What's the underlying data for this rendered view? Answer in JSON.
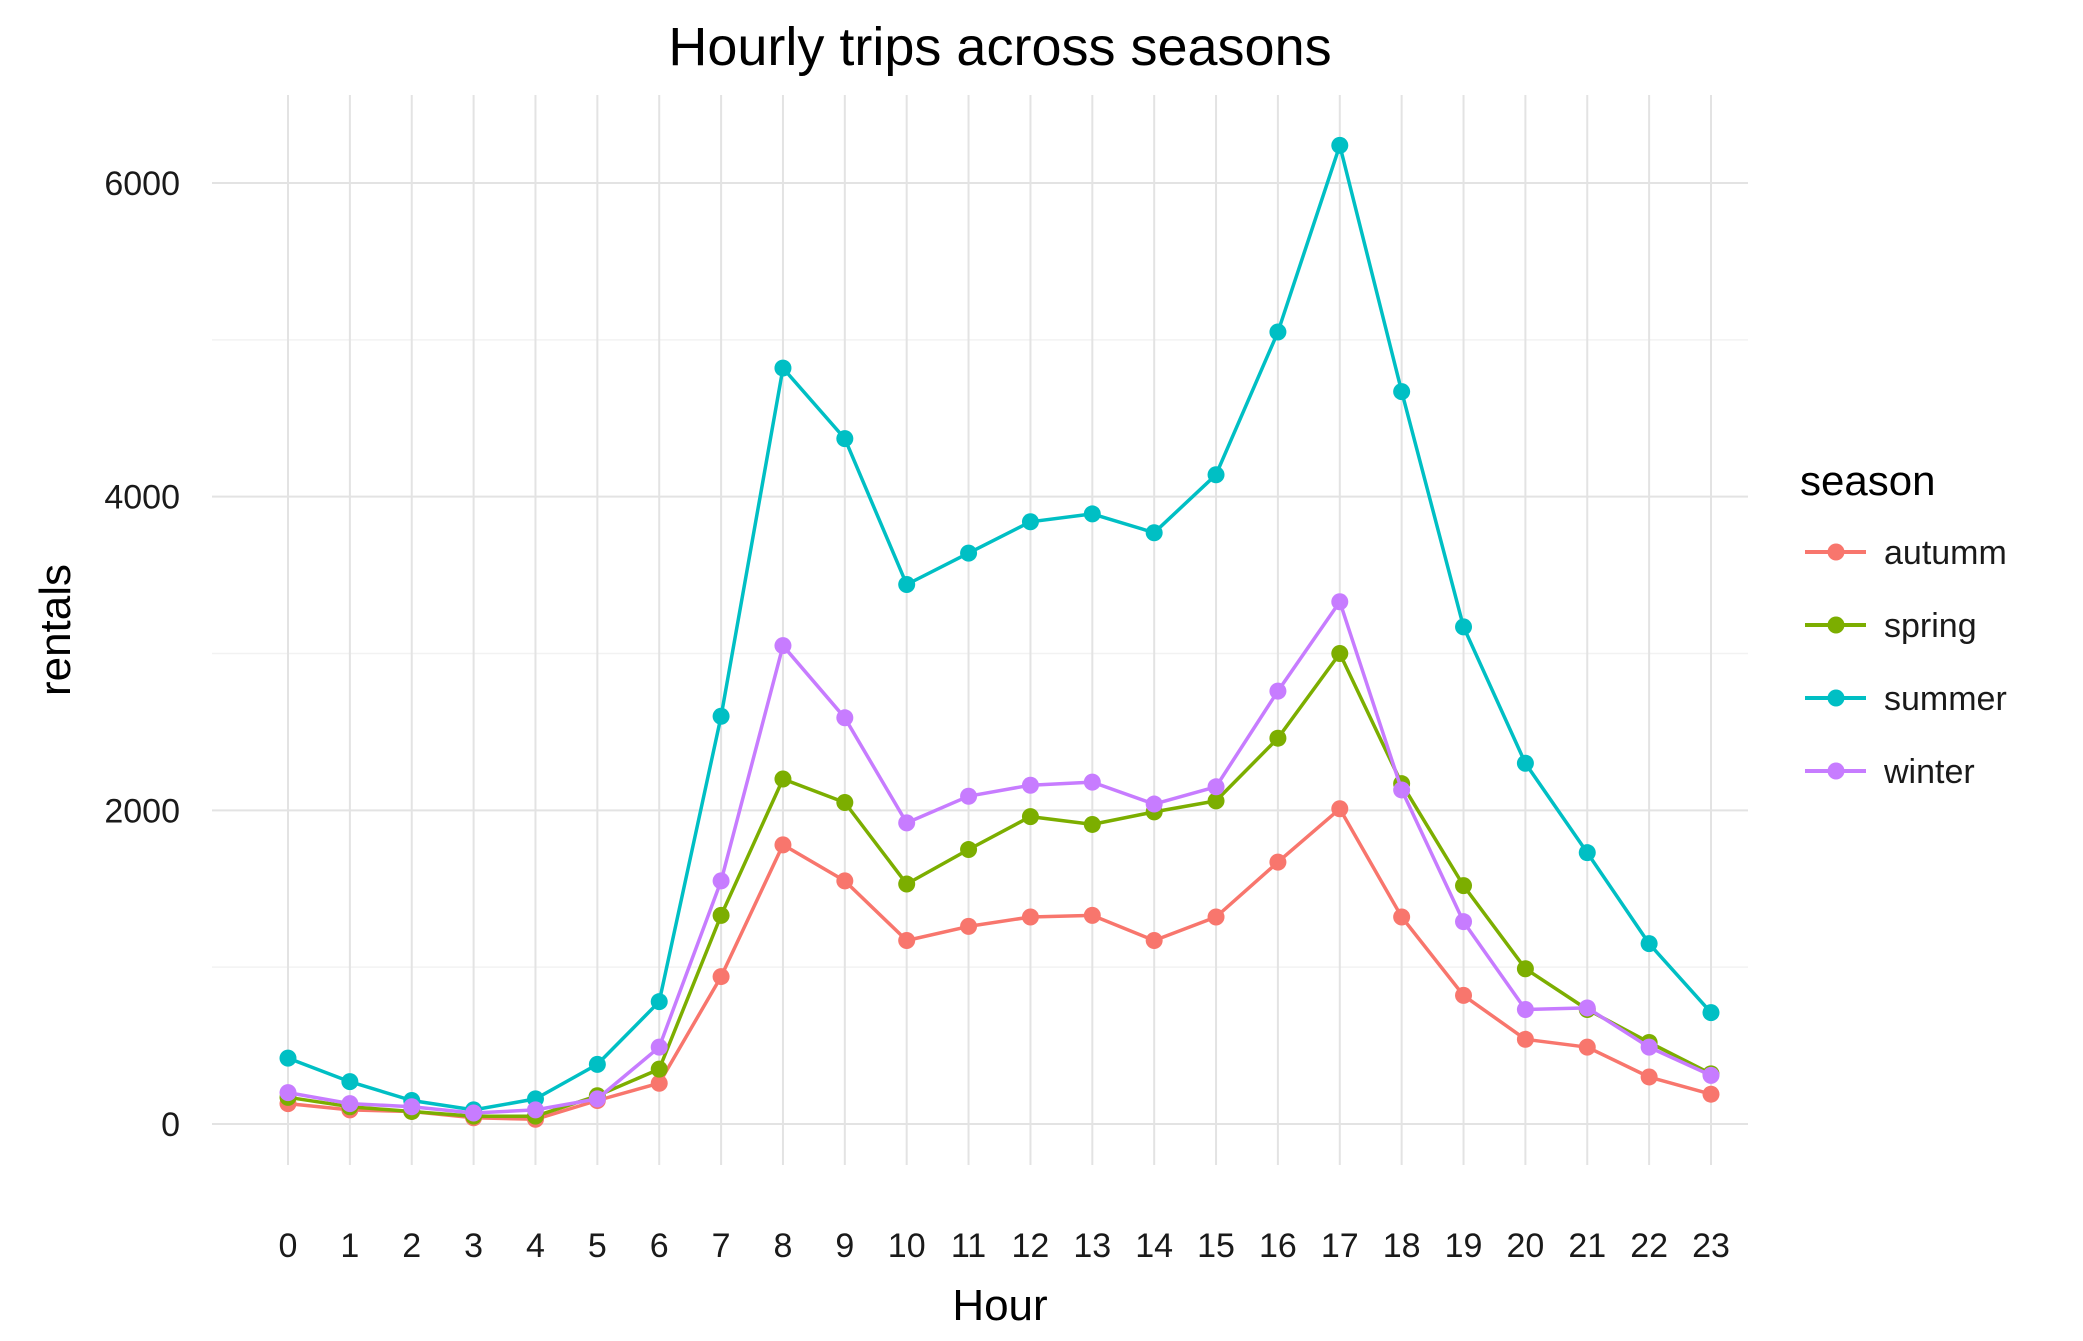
{
  "chart_data": {
    "type": "line",
    "title": "Hourly trips across seasons",
    "xlabel": "Hour",
    "ylabel": "rentals",
    "x": [
      0,
      1,
      2,
      3,
      4,
      5,
      6,
      7,
      8,
      9,
      10,
      11,
      12,
      13,
      14,
      15,
      16,
      17,
      18,
      19,
      20,
      21,
      22,
      23
    ],
    "x_tick_labels": [
      "0",
      "1",
      "2",
      "3",
      "4",
      "5",
      "6",
      "7",
      "8",
      "9",
      "10",
      "11",
      "12",
      "13",
      "14",
      "15",
      "16",
      "17",
      "18",
      "19",
      "20",
      "21",
      "22",
      "23"
    ],
    "ylim": [
      -250,
      6350
    ],
    "y_ticks": [
      0,
      2000,
      4000,
      6000
    ],
    "y_tick_labels": [
      "0",
      "2000",
      "4000",
      "6000"
    ],
    "grid": true,
    "legend": {
      "title": "season",
      "position": "right"
    },
    "series": [
      {
        "name": "autumm",
        "color": "#F8766D",
        "values": [
          130,
          90,
          80,
          40,
          30,
          150,
          260,
          940,
          1780,
          1550,
          1170,
          1260,
          1320,
          1330,
          1170,
          1320,
          1670,
          2010,
          1320,
          820,
          540,
          490,
          300,
          190
        ]
      },
      {
        "name": "spring",
        "color": "#7CAE00",
        "values": [
          170,
          110,
          80,
          50,
          50,
          180,
          350,
          1330,
          2200,
          2050,
          1530,
          1750,
          1960,
          1910,
          1990,
          2060,
          2460,
          3000,
          2170,
          1520,
          990,
          730,
          520,
          320
        ]
      },
      {
        "name": "summer",
        "color": "#00BFC4",
        "values": [
          420,
          270,
          150,
          90,
          160,
          380,
          780,
          2600,
          4820,
          4370,
          3440,
          3640,
          3840,
          3890,
          3770,
          4140,
          5050,
          6240,
          4670,
          3170,
          2300,
          1730,
          1150,
          710
        ]
      },
      {
        "name": "winter",
        "color": "#C77CFF",
        "values": [
          200,
          130,
          110,
          70,
          90,
          160,
          490,
          1550,
          3050,
          2590,
          1920,
          2090,
          2160,
          2180,
          2040,
          2150,
          2760,
          3330,
          2130,
          1290,
          730,
          740,
          490,
          310
        ]
      }
    ]
  }
}
